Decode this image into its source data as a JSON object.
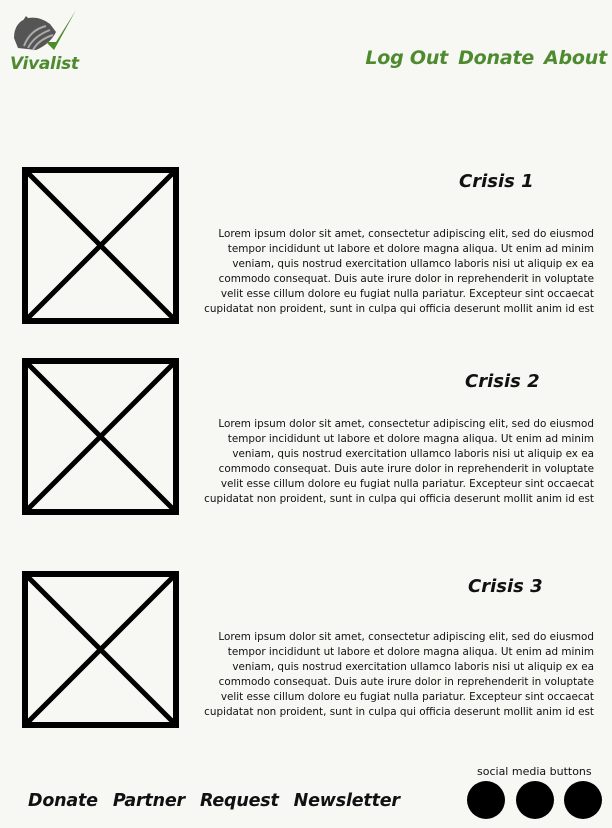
{
  "brand": {
    "name": "Vivalist",
    "logo_icon": "bird-checkmark-icon",
    "accent_color": "#4e8a2e"
  },
  "top_nav": [
    {
      "label": "Log Out"
    },
    {
      "label": "Donate"
    },
    {
      "label": "About"
    }
  ],
  "crises": [
    {
      "title": "Crisis 1",
      "image_icon": "image-placeholder-icon",
      "body": "Lorem ipsum dolor sit amet, consectetur adipiscing elit, sed do eiusmod tempor incididunt ut labore et dolore magna aliqua. Ut enim ad minim veniam, quis nostrud exercitation ullamco laboris nisi ut aliquip ex ea commodo consequat. Duis aute irure dolor in reprehenderit in voluptate velit esse cillum dolore eu fugiat nulla pariatur. Excepteur sint occaecat cupidatat non proident, sunt in culpa qui officia deserunt mollit anim id est laborum."
    },
    {
      "title": "Crisis 2",
      "image_icon": "image-placeholder-icon",
      "body": "Lorem ipsum dolor sit amet, consectetur adipiscing elit, sed do eiusmod tempor incididunt ut labore et dolore magna aliqua. Ut enim ad minim veniam, quis nostrud exercitation ullamco laboris nisi ut aliquip ex ea commodo consequat. Duis aute irure dolor in reprehenderit in voluptate velit esse cillum dolore eu fugiat nulla pariatur. Excepteur sint occaecat cupidatat non proident, sunt in culpa qui officia deserunt mollit anim id est laborum."
    },
    {
      "title": "Crisis 3",
      "image_icon": "image-placeholder-icon",
      "body": "Lorem ipsum dolor sit amet, consectetur adipiscing elit, sed do eiusmod tempor incididunt ut labore et dolore magna aliqua. Ut enim ad minim veniam, quis nostrud exercitation ullamco laboris nisi ut aliquip ex ea commodo consequat. Duis aute irure dolor in reprehenderit in voluptate velit esse cillum dolore eu fugiat nulla pariatur. Excepteur sint occaecat cupidatat non proident, sunt in culpa qui officia deserunt mollit anim id est laborum."
    }
  ],
  "footer_nav": [
    {
      "label": "Donate"
    },
    {
      "label": "Partner"
    },
    {
      "label": "Request"
    },
    {
      "label": "Newsletter"
    }
  ],
  "social": {
    "label": "social media buttons",
    "buttons": [
      {
        "icon": "social-circle-icon"
      },
      {
        "icon": "social-circle-icon"
      },
      {
        "icon": "social-circle-icon"
      }
    ]
  }
}
